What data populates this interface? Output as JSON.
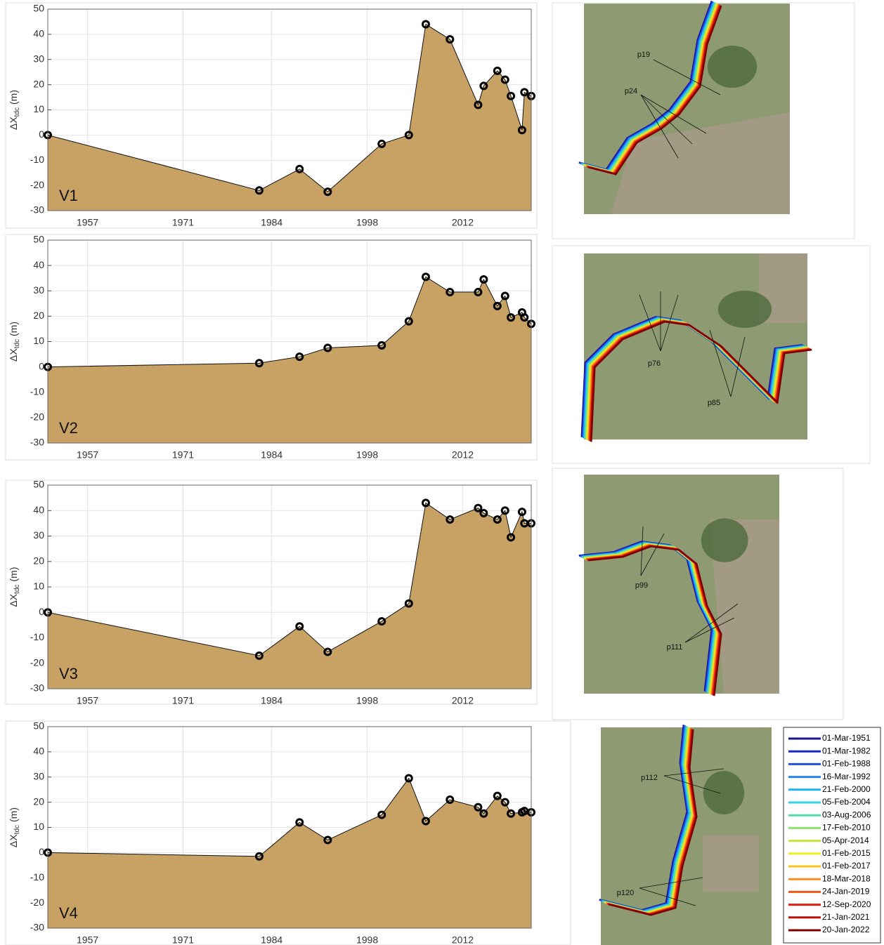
{
  "chart_data": [
    {
      "type": "area",
      "panel_label": "V1",
      "ylabel": [
        "ΔX",
        "tdc",
        "(m)"
      ],
      "color": "#c8a265",
      "grid": true,
      "x": [
        1951.17,
        1982.17,
        1988.08,
        1992.21,
        2000.13,
        2004.1,
        2006.59,
        2010.13,
        2014.26,
        2015.08,
        2017.08,
        2018.21,
        2019.07,
        2020.7,
        2021.05,
        2022.05
      ],
      "values": [
        0,
        -22,
        -13.5,
        -22.5,
        -3.5,
        0,
        44,
        38,
        12,
        19.5,
        25.5,
        22,
        15.5,
        2,
        17,
        15.5
      ],
      "xlim": [
        1951.17,
        2022.05
      ],
      "xticks": [
        1957,
        1971,
        1984,
        1998,
        2012
      ],
      "ylim": [
        -30,
        50
      ],
      "yticks": [
        -30,
        -20,
        -10,
        0,
        10,
        20,
        30,
        40,
        50
      ]
    },
    {
      "type": "area",
      "panel_label": "V2",
      "ylabel": [
        "ΔX",
        "tdc",
        "(m)"
      ],
      "color": "#c8a265",
      "grid": true,
      "x": [
        1951.17,
        1982.17,
        1988.08,
        1992.21,
        2000.13,
        2004.1,
        2006.59,
        2010.13,
        2014.26,
        2015.08,
        2017.08,
        2018.21,
        2019.07,
        2020.7,
        2021.05,
        2022.05
      ],
      "values": [
        0,
        1.5,
        4,
        7.5,
        8.5,
        18,
        35.5,
        29.5,
        29.5,
        34.5,
        24,
        28,
        19.5,
        21.5,
        19.5,
        17
      ],
      "xlim": [
        1951.17,
        2022.05
      ],
      "xticks": [
        1957,
        1971,
        1984,
        1998,
        2012
      ],
      "ylim": [
        -30,
        50
      ],
      "yticks": [
        -30,
        -20,
        -10,
        0,
        10,
        20,
        30,
        40,
        50
      ]
    },
    {
      "type": "area",
      "panel_label": "V3",
      "ylabel": [
        "ΔX",
        "tdc",
        "(m)"
      ],
      "color": "#c8a265",
      "grid": true,
      "x": [
        1951.17,
        1982.17,
        1988.08,
        1992.21,
        2000.13,
        2004.1,
        2006.59,
        2010.13,
        2014.26,
        2015.08,
        2017.08,
        2018.21,
        2019.07,
        2020.7,
        2021.05,
        2022.05
      ],
      "values": [
        0,
        -17,
        -5.5,
        -15.5,
        -3.5,
        3.5,
        43,
        36.5,
        41,
        39,
        36.5,
        40,
        29.5,
        39.5,
        35,
        35
      ],
      "xlim": [
        1951.17,
        2022.05
      ],
      "xticks": [
        1957,
        1971,
        1984,
        1998,
        2012
      ],
      "ylim": [
        -30,
        50
      ],
      "yticks": [
        -30,
        -20,
        -10,
        0,
        10,
        20,
        30,
        40,
        50
      ]
    },
    {
      "type": "area",
      "panel_label": "V4",
      "ylabel": [
        "ΔX",
        "tdc",
        "(m)"
      ],
      "color": "#c8a265",
      "grid": true,
      "x": [
        1951.17,
        1982.17,
        1988.08,
        1992.21,
        2000.13,
        2004.1,
        2006.59,
        2010.13,
        2014.26,
        2015.08,
        2017.08,
        2018.21,
        2019.07,
        2020.7,
        2021.05,
        2022.05
      ],
      "values": [
        0,
        -1.5,
        12,
        5,
        15,
        29.5,
        12.5,
        21,
        18,
        15.5,
        22.5,
        20,
        15.5,
        16,
        16.5,
        16
      ],
      "xlim": [
        1951.17,
        2022.05
      ],
      "xticks": [
        1957,
        1971,
        1984,
        1998,
        2012
      ],
      "ylim": [
        -30,
        50
      ],
      "yticks": [
        -30,
        -20,
        -10,
        0,
        10,
        20,
        30,
        40,
        50
      ]
    }
  ],
  "maps": [
    {
      "labels": [
        "p19",
        "p24"
      ]
    },
    {
      "labels": [
        "p76",
        "p85"
      ]
    },
    {
      "labels": [
        "p99",
        "p111"
      ]
    },
    {
      "labels": [
        "p112",
        "p120"
      ]
    }
  ],
  "legend": {
    "entries": [
      {
        "label": "01-Mar-1951",
        "color": "#14148c"
      },
      {
        "label": "01-Mar-1982",
        "color": "#1a28c8"
      },
      {
        "label": "01-Feb-1988",
        "color": "#2050e0"
      },
      {
        "label": "16-Mar-1992",
        "color": "#2a82f0"
      },
      {
        "label": "21-Feb-2000",
        "color": "#1eb2f0"
      },
      {
        "label": "05-Feb-2004",
        "color": "#30d6e0"
      },
      {
        "label": "03-Aug-2006",
        "color": "#50e0a8"
      },
      {
        "label": "17-Feb-2010",
        "color": "#8ee070"
      },
      {
        "label": "05-Apr-2014",
        "color": "#c6e63e"
      },
      {
        "label": "01-Feb-2015",
        "color": "#f0ee1e"
      },
      {
        "label": "01-Feb-2017",
        "color": "#f8c41e"
      },
      {
        "label": "18-Mar-2018",
        "color": "#f88e1e"
      },
      {
        "label": "24-Jan-2019",
        "color": "#f05818"
      },
      {
        "label": "12-Sep-2020",
        "color": "#e01e10"
      },
      {
        "label": "21-Jan-2021",
        "color": "#c00e0e"
      },
      {
        "label": "20-Jan-2022",
        "color": "#7c0000"
      }
    ]
  }
}
